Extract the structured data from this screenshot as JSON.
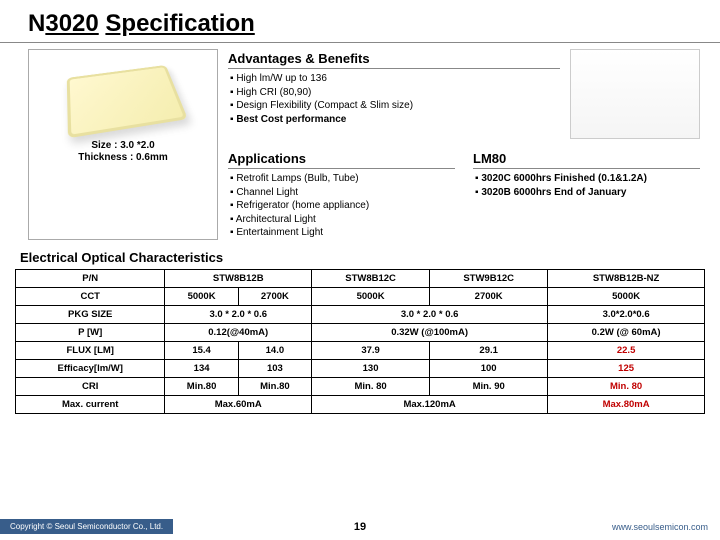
{
  "title": {
    "prefix": "N",
    "model": "3020",
    "word": "Specification"
  },
  "image_caption": {
    "l1": "Size : 3.0 *2.0",
    "l2": "Thickness : 0.6mm"
  },
  "advantages": {
    "heading": "Advantages & Benefits",
    "items": [
      "High lm/W up to 136",
      "High CRI (80,90)",
      "Design Flexibility (Compact & Slim size)"
    ],
    "bold_item": "Best Cost performance"
  },
  "applications": {
    "heading": "Applications",
    "items": [
      "Retrofit Lamps (Bulb, Tube)",
      "Channel Light",
      "Refrigerator (home appliance)",
      "Architectural Light",
      "Entertainment Light"
    ]
  },
  "lm80": {
    "heading": "LM80",
    "items": [
      "3020C 6000hrs Finished (0.1&1.2A)",
      "3020B 6000hrs End of January"
    ]
  },
  "eoc_heading": "Electrical Optical Characteristics",
  "table": {
    "headers": [
      "P/N",
      "STW8B12B",
      "STW8B12C",
      "STW9B12C",
      "STW8B12B-NZ"
    ],
    "rows": [
      {
        "label": "CCT",
        "cells": [
          "5000K",
          "2700K",
          "5000K",
          "2700K",
          "5000K"
        ]
      },
      {
        "label": "PKG SIZE",
        "cells": [
          "3.0 * 2.0 * 0.6",
          "3.0 * 2.0 * 0.6",
          "3.0*2.0*0.6"
        ]
      },
      {
        "label": "P [W]",
        "cells": [
          "0.12(@40mA)",
          "0.32W (@100mA)",
          "0.2W (@ 60mA)"
        ]
      },
      {
        "label": "FLUX [LM]",
        "cells": [
          "15.4",
          "14.0",
          "37.9",
          "29.1",
          "22.5"
        ],
        "hi": [
          4
        ]
      },
      {
        "label": "Efficacy[lm/W]",
        "cells": [
          "134",
          "103",
          "130",
          "100",
          "125"
        ],
        "hi": [
          4
        ]
      },
      {
        "label": "CRI",
        "cells": [
          "Min.80",
          "Min.80",
          "Min. 80",
          "Min. 90",
          "Min. 80"
        ],
        "hi": [
          4
        ]
      },
      {
        "label": "Max. current",
        "cells": [
          "Max.60mA",
          "Max.120mA",
          "Max.80mA"
        ],
        "hi": [
          2
        ]
      }
    ]
  },
  "footer": {
    "copyright": "Copyright © Seoul Semiconductor Co., Ltd.",
    "page": "19",
    "url": "www.seoulsemicon.com"
  }
}
